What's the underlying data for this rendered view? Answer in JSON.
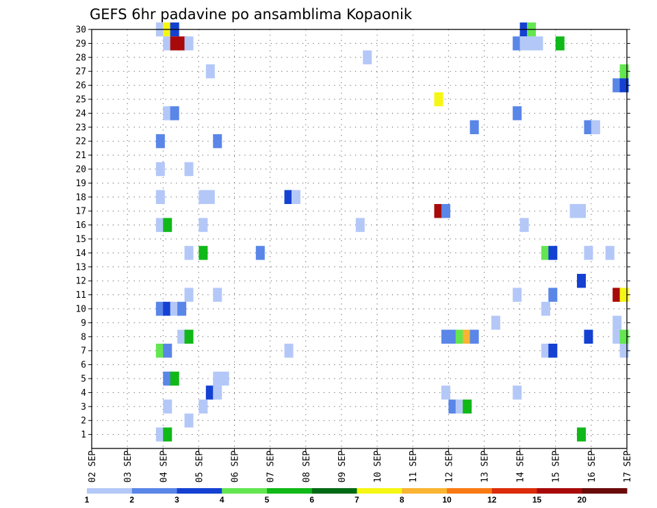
{
  "chart_data": {
    "type": "heatmap",
    "title": "GEFS 6hr padavine po ansamblima Kopaonik",
    "xlabel": "",
    "ylabel": "",
    "x_ticks": [
      "02 SEP",
      "03 SEP",
      "04 SEP",
      "05 SEP",
      "06 SEP",
      "07 SEP",
      "08 SEP",
      "09 SEP",
      "10 SEP",
      "11 SEP",
      "12 SEP",
      "13 SEP",
      "14 SEP",
      "15 SEP",
      "16 SEP",
      "17 SEP"
    ],
    "y_ticks": [
      1,
      2,
      3,
      4,
      5,
      6,
      7,
      8,
      9,
      10,
      11,
      12,
      13,
      14,
      15,
      16,
      17,
      18,
      19,
      20,
      21,
      22,
      23,
      24,
      25,
      26,
      27,
      28,
      29,
      30
    ],
    "x_range_days": [
      0,
      15
    ],
    "y_range": [
      0,
      30
    ],
    "grid": true,
    "colorbar": {
      "labels": [
        "1",
        "2",
        "3",
        "4",
        "5",
        "6",
        "7",
        "8",
        "10",
        "12",
        "15",
        "20"
      ],
      "colors": [
        "#b4c8f8",
        "#5a86e8",
        "#1441d2",
        "#64e650",
        "#10b818",
        "#006a14",
        "#f6f614",
        "#f8b432",
        "#f87a14",
        "#dc2c0a",
        "#a80a0a",
        "#6a0a0a"
      ]
    },
    "cells": [
      {
        "m": 30,
        "d": 1.8,
        "v": 1
      },
      {
        "m": 30,
        "d": 2.0,
        "v": 7
      },
      {
        "m": 30,
        "d": 2.2,
        "v": 3
      },
      {
        "m": 30,
        "d": 12.0,
        "v": 3
      },
      {
        "m": 30,
        "d": 12.2,
        "v": 4
      },
      {
        "m": 29,
        "d": 2.0,
        "v": 1
      },
      {
        "m": 29,
        "d": 2.2,
        "v": 15
      },
      {
        "m": 29,
        "d": 2.4,
        "v": 15
      },
      {
        "m": 29,
        "d": 2.6,
        "v": 1
      },
      {
        "m": 29,
        "d": 11.8,
        "v": 2
      },
      {
        "m": 29,
        "d": 12.0,
        "v": 1
      },
      {
        "m": 29,
        "d": 12.2,
        "v": 1
      },
      {
        "m": 29,
        "d": 12.4,
        "v": 1
      },
      {
        "m": 29,
        "d": 13.0,
        "v": 5
      },
      {
        "m": 28,
        "d": 7.6,
        "v": 1
      },
      {
        "m": 27,
        "d": 3.2,
        "v": 1
      },
      {
        "m": 27,
        "d": 14.8,
        "v": 4
      },
      {
        "m": 26,
        "d": 14.6,
        "v": 2
      },
      {
        "m": 26,
        "d": 14.8,
        "v": 3
      },
      {
        "m": 25,
        "d": 9.6,
        "v": 7
      },
      {
        "m": 24,
        "d": 2.0,
        "v": 1
      },
      {
        "m": 24,
        "d": 2.2,
        "v": 2
      },
      {
        "m": 24,
        "d": 11.8,
        "v": 2
      },
      {
        "m": 23,
        "d": 10.6,
        "v": 2
      },
      {
        "m": 23,
        "d": 13.8,
        "v": 2
      },
      {
        "m": 23,
        "d": 14.0,
        "v": 1
      },
      {
        "m": 22,
        "d": 1.8,
        "v": 2
      },
      {
        "m": 22,
        "d": 3.4,
        "v": 2
      },
      {
        "m": 20,
        "d": 1.8,
        "v": 1
      },
      {
        "m": 20,
        "d": 2.6,
        "v": 1
      },
      {
        "m": 18,
        "d": 1.8,
        "v": 1
      },
      {
        "m": 18,
        "d": 3.0,
        "v": 1
      },
      {
        "m": 18,
        "d": 3.2,
        "v": 1
      },
      {
        "m": 18,
        "d": 5.4,
        "v": 3
      },
      {
        "m": 18,
        "d": 5.6,
        "v": 1
      },
      {
        "m": 17,
        "d": 9.6,
        "v": 15
      },
      {
        "m": 17,
        "d": 9.8,
        "v": 2
      },
      {
        "m": 17,
        "d": 13.4,
        "v": 1
      },
      {
        "m": 17,
        "d": 13.6,
        "v": 1
      },
      {
        "m": 16,
        "d": 1.8,
        "v": 1
      },
      {
        "m": 16,
        "d": 2.0,
        "v": 5
      },
      {
        "m": 16,
        "d": 3.0,
        "v": 1
      },
      {
        "m": 16,
        "d": 7.4,
        "v": 1
      },
      {
        "m": 16,
        "d": 12.0,
        "v": 1
      },
      {
        "m": 14,
        "d": 2.6,
        "v": 1
      },
      {
        "m": 14,
        "d": 3.0,
        "v": 5
      },
      {
        "m": 14,
        "d": 4.6,
        "v": 2
      },
      {
        "m": 14,
        "d": 12.6,
        "v": 4
      },
      {
        "m": 14,
        "d": 12.8,
        "v": 3
      },
      {
        "m": 14,
        "d": 13.8,
        "v": 1
      },
      {
        "m": 14,
        "d": 14.4,
        "v": 1
      },
      {
        "m": 12,
        "d": 13.6,
        "v": 3
      },
      {
        "m": 11,
        "d": 2.6,
        "v": 1
      },
      {
        "m": 11,
        "d": 3.4,
        "v": 1
      },
      {
        "m": 11,
        "d": 11.8,
        "v": 1
      },
      {
        "m": 11,
        "d": 12.8,
        "v": 2
      },
      {
        "m": 11,
        "d": 14.6,
        "v": 15
      },
      {
        "m": 11,
        "d": 14.8,
        "v": 7
      },
      {
        "m": 10,
        "d": 1.8,
        "v": 2
      },
      {
        "m": 10,
        "d": 2.0,
        "v": 3
      },
      {
        "m": 10,
        "d": 2.2,
        "v": 1
      },
      {
        "m": 10,
        "d": 2.4,
        "v": 2
      },
      {
        "m": 10,
        "d": 12.6,
        "v": 1
      },
      {
        "m": 9,
        "d": 11.2,
        "v": 1
      },
      {
        "m": 9,
        "d": 14.6,
        "v": 1
      },
      {
        "m": 8,
        "d": 2.4,
        "v": 1
      },
      {
        "m": 8,
        "d": 2.6,
        "v": 5
      },
      {
        "m": 8,
        "d": 9.8,
        "v": 2
      },
      {
        "m": 8,
        "d": 10.0,
        "v": 2
      },
      {
        "m": 8,
        "d": 10.2,
        "v": 4
      },
      {
        "m": 8,
        "d": 10.4,
        "v": 8
      },
      {
        "m": 8,
        "d": 10.6,
        "v": 2
      },
      {
        "m": 8,
        "d": 13.8,
        "v": 3
      },
      {
        "m": 8,
        "d": 14.6,
        "v": 1
      },
      {
        "m": 8,
        "d": 14.8,
        "v": 4
      },
      {
        "m": 7,
        "d": 1.8,
        "v": 4
      },
      {
        "m": 7,
        "d": 2.0,
        "v": 2
      },
      {
        "m": 7,
        "d": 5.4,
        "v": 1
      },
      {
        "m": 7,
        "d": 12.6,
        "v": 1
      },
      {
        "m": 7,
        "d": 12.8,
        "v": 3
      },
      {
        "m": 7,
        "d": 14.8,
        "v": 1
      },
      {
        "m": 5,
        "d": 2.0,
        "v": 2
      },
      {
        "m": 5,
        "d": 2.2,
        "v": 5
      },
      {
        "m": 5,
        "d": 3.4,
        "v": 1
      },
      {
        "m": 5,
        "d": 3.6,
        "v": 1
      },
      {
        "m": 4,
        "d": 3.2,
        "v": 3
      },
      {
        "m": 4,
        "d": 3.4,
        "v": 1
      },
      {
        "m": 4,
        "d": 9.8,
        "v": 1
      },
      {
        "m": 4,
        "d": 11.8,
        "v": 1
      },
      {
        "m": 3,
        "d": 2.0,
        "v": 1
      },
      {
        "m": 3,
        "d": 3.0,
        "v": 1
      },
      {
        "m": 3,
        "d": 10.0,
        "v": 2
      },
      {
        "m": 3,
        "d": 10.2,
        "v": 1
      },
      {
        "m": 3,
        "d": 10.4,
        "v": 5
      },
      {
        "m": 2,
        "d": 2.6,
        "v": 1
      },
      {
        "m": 1,
        "d": 1.8,
        "v": 1
      },
      {
        "m": 1,
        "d": 2.0,
        "v": 5
      },
      {
        "m": 1,
        "d": 13.6,
        "v": 5
      }
    ]
  }
}
